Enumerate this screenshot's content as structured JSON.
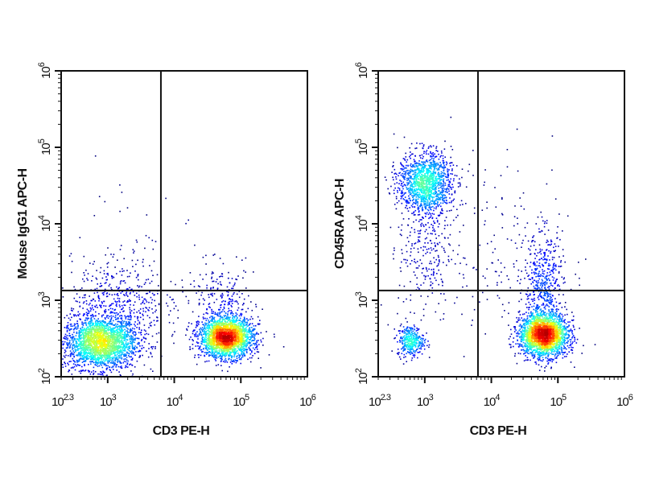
{
  "chart_data": [
    {
      "type": "scatter",
      "subtype": "flow-cytometry-density-dot-plot",
      "xlabel": "CD3 PE-H",
      "ylabel": "Mouse IgG1 APC-H",
      "xscale": "log",
      "yscale": "log",
      "xlim": [
        200,
        1000000
      ],
      "ylim": [
        100,
        1000000
      ],
      "xticks": [
        {
          "base": "10",
          "exp": "2.3"
        },
        {
          "base": "10",
          "exp": "3"
        },
        {
          "base": "10",
          "exp": "4"
        },
        {
          "base": "10",
          "exp": "5"
        },
        {
          "base": "10",
          "exp": "6"
        }
      ],
      "yticks": [
        {
          "base": "10",
          "exp": "2"
        },
        {
          "base": "10",
          "exp": "3"
        },
        {
          "base": "10",
          "exp": "4"
        },
        {
          "base": "10",
          "exp": "5"
        },
        {
          "base": "10",
          "exp": "6"
        }
      ],
      "quadrant_gate": {
        "x": 6300,
        "y": 1340
      },
      "populations": [
        {
          "x": 750,
          "y": 280,
          "sx_dec": 0.28,
          "sy_dec": 0.17,
          "n": 2300
        },
        {
          "x": 1400,
          "y": 900,
          "sx_dec": 0.35,
          "sy_dec": 0.3,
          "n": 500
        },
        {
          "x": 60000,
          "y": 330,
          "sx_dec": 0.2,
          "sy_dec": 0.13,
          "n": 2300
        },
        {
          "x": 50000,
          "y": 900,
          "sx_dec": 0.25,
          "sy_dec": 0.25,
          "n": 250
        },
        {
          "x": 3000,
          "y": 3000,
          "sx_dec": 0.6,
          "sy_dec": 0.6,
          "n": 60
        }
      ]
    },
    {
      "type": "scatter",
      "subtype": "flow-cytometry-density-dot-plot",
      "xlabel": "CD3 PE-H",
      "ylabel": "CD45RA APC-H",
      "xscale": "log",
      "yscale": "log",
      "xlim": [
        200,
        1000000
      ],
      "ylim": [
        100,
        1000000
      ],
      "xticks": [
        {
          "base": "10",
          "exp": "2.3"
        },
        {
          "base": "10",
          "exp": "3"
        },
        {
          "base": "10",
          "exp": "4"
        },
        {
          "base": "10",
          "exp": "5"
        },
        {
          "base": "10",
          "exp": "6"
        }
      ],
      "yticks": [
        {
          "base": "10",
          "exp": "2"
        },
        {
          "base": "10",
          "exp": "3"
        },
        {
          "base": "10",
          "exp": "4"
        },
        {
          "base": "10",
          "exp": "5"
        },
        {
          "base": "10",
          "exp": "6"
        }
      ],
      "quadrant_gate": {
        "x": 6300,
        "y": 1340
      },
      "populations": [
        {
          "x": 1000,
          "y": 35000,
          "sx_dec": 0.2,
          "sy_dec": 0.2,
          "n": 1300
        },
        {
          "x": 1000,
          "y": 5000,
          "sx_dec": 0.2,
          "sy_dec": 0.5,
          "n": 300
        },
        {
          "x": 600,
          "y": 300,
          "sx_dec": 0.1,
          "sy_dec": 0.1,
          "n": 350
        },
        {
          "x": 60000,
          "y": 360,
          "sx_dec": 0.18,
          "sy_dec": 0.14,
          "n": 2400
        },
        {
          "x": 60000,
          "y": 1500,
          "sx_dec": 0.15,
          "sy_dec": 0.35,
          "n": 500
        },
        {
          "x": 15000,
          "y": 5000,
          "sx_dec": 0.5,
          "sy_dec": 0.6,
          "n": 150
        }
      ]
    }
  ],
  "colors": {
    "low_density": "#0000cc",
    "high_density": "#ff0000",
    "axes": "#111111"
  }
}
